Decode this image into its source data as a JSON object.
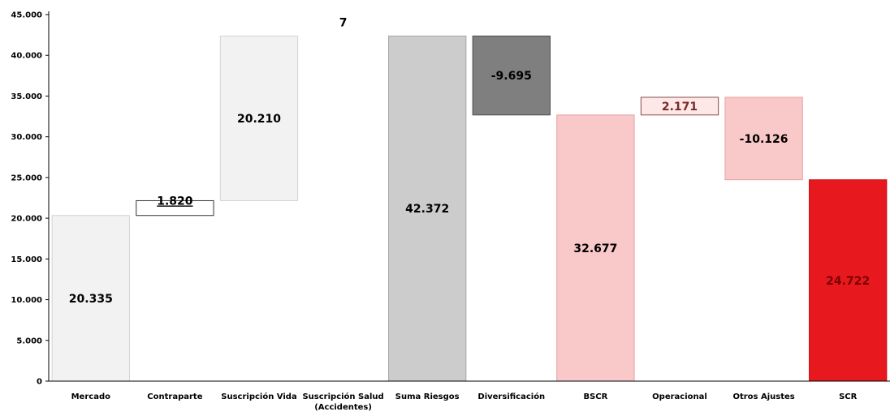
{
  "chart_data": {
    "type": "bar",
    "subtype": "waterfall",
    "title": "",
    "xlabel": "",
    "ylabel": "",
    "ylim": [
      0,
      45000
    ],
    "yticks": [
      0,
      5000,
      10000,
      15000,
      20000,
      25000,
      30000,
      35000,
      40000,
      45000
    ],
    "ytick_labels": [
      "0",
      "5.000",
      "10.000",
      "15.000",
      "20.000",
      "25.000",
      "30.000",
      "35.000",
      "40.000",
      "45.000"
    ],
    "grid": false,
    "categories": [
      [
        "Mercado"
      ],
      [
        "Contraparte"
      ],
      [
        "Suscripción Vida"
      ],
      [
        "Suscripción Salud",
        "(Accidentes)"
      ],
      [
        "Suma Riesgos"
      ],
      [
        "Diversificación"
      ],
      [
        "BSCR"
      ],
      [
        "Operacional"
      ],
      [
        "Otros Ajustes"
      ],
      [
        "SCR"
      ]
    ],
    "bars": [
      {
        "start": 0,
        "end": 20335,
        "label": "20.335",
        "color": "#f2f2f2",
        "stroke": "#d4d4d4",
        "label_color": "#000000"
      },
      {
        "start": 20335,
        "end": 22155,
        "label": "1.820",
        "color": "#ffffff",
        "stroke": "#333333",
        "label_color": "#000000"
      },
      {
        "start": 22155,
        "end": 42365,
        "label": "20.210",
        "color": "#f2f2f2",
        "stroke": "#d4d4d4",
        "label_color": "#000000"
      },
      {
        "start": 42365,
        "end": 42372,
        "label": "7",
        "color": "#ffffff",
        "stroke": "none",
        "label_color": "#000000"
      },
      {
        "start": 0,
        "end": 42372,
        "label": "42.372",
        "color": "#cccccc",
        "stroke": "#a6a6a6",
        "label_color": "#000000"
      },
      {
        "start": 32677,
        "end": 42372,
        "label": "-9.695",
        "color": "#7f7f7f",
        "stroke": "#4d4d4d",
        "label_color": "#000000"
      },
      {
        "start": 0,
        "end": 32677,
        "label": "32.677",
        "color": "#f9c8c8",
        "stroke": "#e8a0a0",
        "label_color": "#000000"
      },
      {
        "start": 32677,
        "end": 34848,
        "label": "2.171",
        "color": "#fde7e7",
        "stroke": "#8b4a4a",
        "label_color": "#7a2a2a"
      },
      {
        "start": 24722,
        "end": 34848,
        "label": "-10.126",
        "color": "#f9c8c8",
        "stroke": "#e8a0a0",
        "label_color": "#000000"
      },
      {
        "start": 0,
        "end": 24722,
        "label": "24.722",
        "color": "#e8191e",
        "stroke": "#c81014",
        "label_color": "#7a0000"
      }
    ]
  }
}
